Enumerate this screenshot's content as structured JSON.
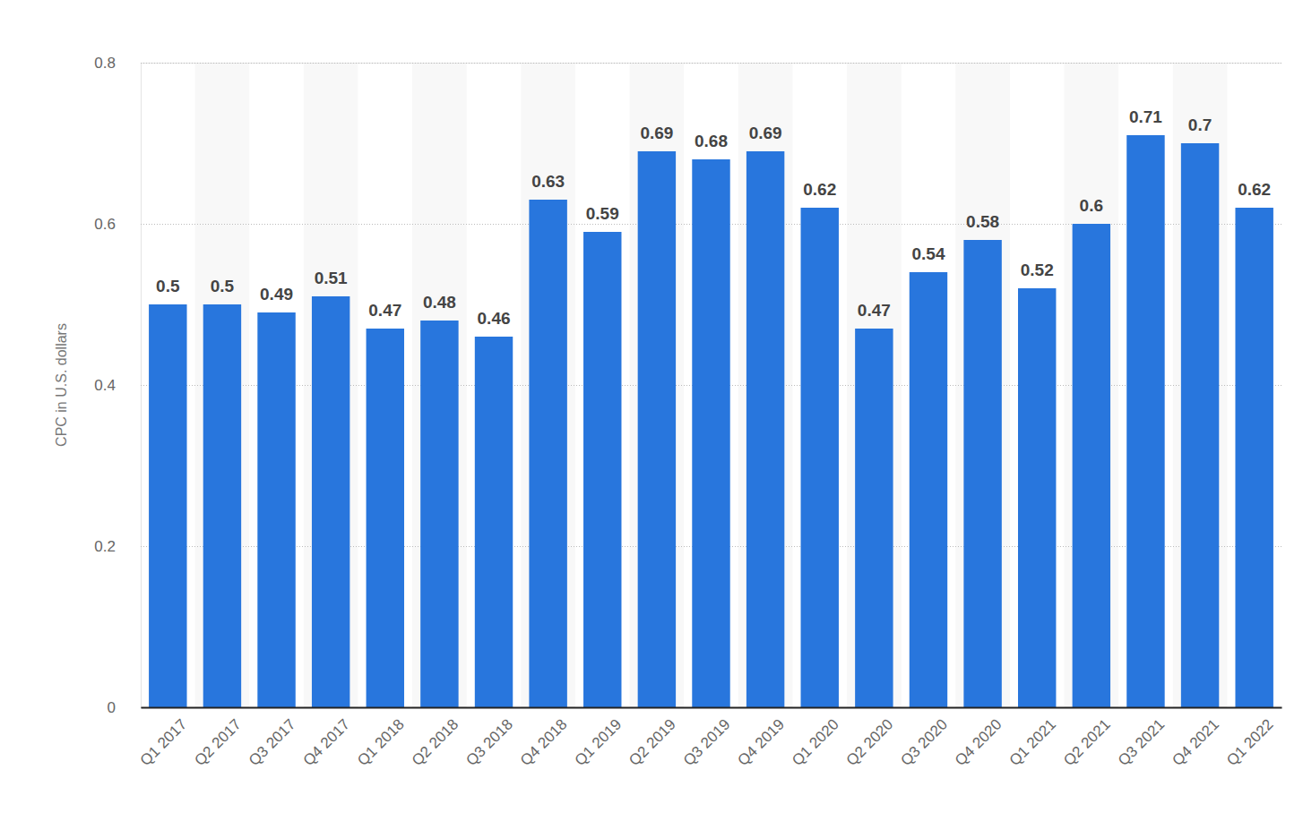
{
  "chart_data": {
    "type": "bar",
    "y_label": "CPC in U.S. dollars",
    "categories": [
      "Q1 2017",
      "Q2 2017",
      "Q3 2017",
      "Q4 2017",
      "Q1 2018",
      "Q2 2018",
      "Q3 2018",
      "Q4 2018",
      "Q1 2019",
      "Q2 2019",
      "Q3 2019",
      "Q4 2019",
      "Q1 2020",
      "Q2 2020",
      "Q3 2020",
      "Q4 2020",
      "Q1 2021",
      "Q2 2021",
      "Q3 2021",
      "Q4 2021",
      "Q1 2022"
    ],
    "values": [
      0.5,
      0.5,
      0.49,
      0.51,
      0.47,
      0.48,
      0.46,
      0.63,
      0.59,
      0.69,
      0.68,
      0.69,
      0.62,
      0.47,
      0.54,
      0.58,
      0.52,
      0.6,
      0.71,
      0.7,
      0.62
    ],
    "color": "#2876dd",
    "ylim": [
      0,
      0.8
    ],
    "yticks": [
      0,
      0.2,
      0.4,
      0.6,
      0.8
    ],
    "grid": true,
    "data_labels": true
  }
}
